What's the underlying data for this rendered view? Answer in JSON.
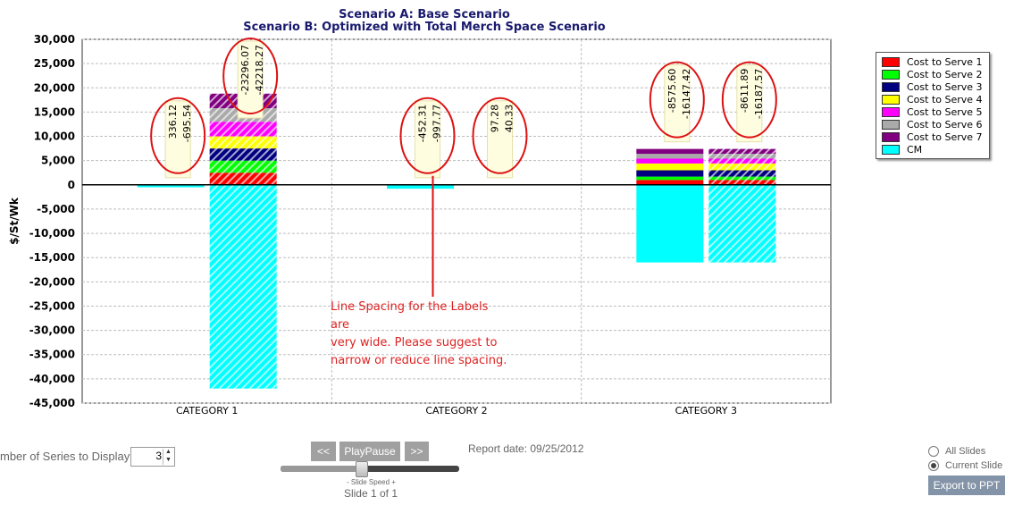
{
  "titles": {
    "line1": "Scenario A: Base Scenario",
    "line2": "Scenario B: Optimized with Total Merch Space Scenario"
  },
  "chart_data": {
    "type": "bar",
    "stacked": true,
    "ylabel": "$/St/Wk",
    "ylim": [
      -45000,
      30000
    ],
    "yticks": [
      30000,
      25000,
      20000,
      15000,
      10000,
      5000,
      0,
      -5000,
      -10000,
      -15000,
      -20000,
      -25000,
      -30000,
      -35000,
      -40000,
      -45000
    ],
    "ytick_labels": [
      "30,000",
      "25,000",
      "20,000",
      "15,000",
      "10,000",
      "5,000",
      "0",
      "-5,000",
      "-10,000",
      "-15,000",
      "-20,000",
      "-25,000",
      "-30,000",
      "-35,000",
      "-40,000",
      "-45,000"
    ],
    "categories": [
      "CATEGORY 1",
      "CATEGORY 2",
      "CATEGORY 3"
    ],
    "scenarios": [
      "A",
      "B"
    ],
    "grid": true,
    "legend_position": "right",
    "series": [
      {
        "name": "Cost to Serve 1",
        "color": "#ff0000",
        "A": [
          0,
          0,
          1000
        ],
        "B": [
          2500,
          0,
          1000
        ]
      },
      {
        "name": "Cost to Serve 2",
        "color": "#00ff00",
        "A": [
          0,
          0,
          700
        ],
        "B": [
          2500,
          0,
          700
        ]
      },
      {
        "name": "Cost to Serve 3",
        "color": "#000080",
        "A": [
          0,
          0,
          1300
        ],
        "B": [
          2500,
          0,
          1300
        ]
      },
      {
        "name": "Cost to Serve 4",
        "color": "#ffff00",
        "A": [
          0,
          0,
          1400
        ],
        "B": [
          2500,
          0,
          1400
        ]
      },
      {
        "name": "Cost to Serve 5",
        "color": "#ff00ff",
        "A": [
          0,
          0,
          1000
        ],
        "B": [
          3000,
          0,
          1000
        ]
      },
      {
        "name": "Cost to Serve 6",
        "color": "#aaaaaa",
        "A": [
          0,
          0,
          1000
        ],
        "B": [
          2800,
          0,
          1000
        ]
      },
      {
        "name": "Cost to Serve 7",
        "color": "#800080",
        "A": [
          0,
          0,
          1000
        ],
        "B": [
          3000,
          0,
          1000
        ]
      },
      {
        "name": "CM",
        "color": "#00ffff",
        "A": [
          -500,
          -800,
          -16000
        ],
        "B": [
          -42000,
          0,
          -16000
        ]
      }
    ],
    "data_labels": [
      {
        "category": "CATEGORY 1",
        "scenario": "A",
        "lines": [
          "336.12",
          "-695.54"
        ]
      },
      {
        "category": "CATEGORY 1",
        "scenario": "B",
        "lines": [
          "-23296.07",
          "-42218.27"
        ]
      },
      {
        "category": "CATEGORY 2",
        "scenario": "A",
        "lines": [
          "-452.31",
          "-997.77"
        ]
      },
      {
        "category": "CATEGORY 2",
        "scenario": "B",
        "lines": [
          "97.28",
          "40.33"
        ]
      },
      {
        "category": "CATEGORY 3",
        "scenario": "A",
        "lines": [
          "-8575.60",
          "-16147.42"
        ]
      },
      {
        "category": "CATEGORY 3",
        "scenario": "B",
        "lines": [
          "-8611.89",
          "-16187.57"
        ]
      }
    ]
  },
  "annotation": {
    "line1": "Line Spacing for the Labels are",
    "line2": "very wide. Please suggest to",
    "line3": "narrow or reduce line spacing."
  },
  "controls": {
    "series_label": "mber of Series to Display:",
    "series_count": "3",
    "prev_label": "<<",
    "playpause_label": "PlayPause",
    "next_label": ">>",
    "slide_speed_label": "- Slide Speed +",
    "slide_counter": "Slide 1 of 1",
    "slide_speed_fraction": 0.45,
    "report_date": "Report date: 09/25/2012",
    "all_slides_label": "All Slides",
    "current_slide_label": "Current Slide",
    "selected_export_scope": "Current Slide",
    "export_label": "Export to PPT"
  }
}
